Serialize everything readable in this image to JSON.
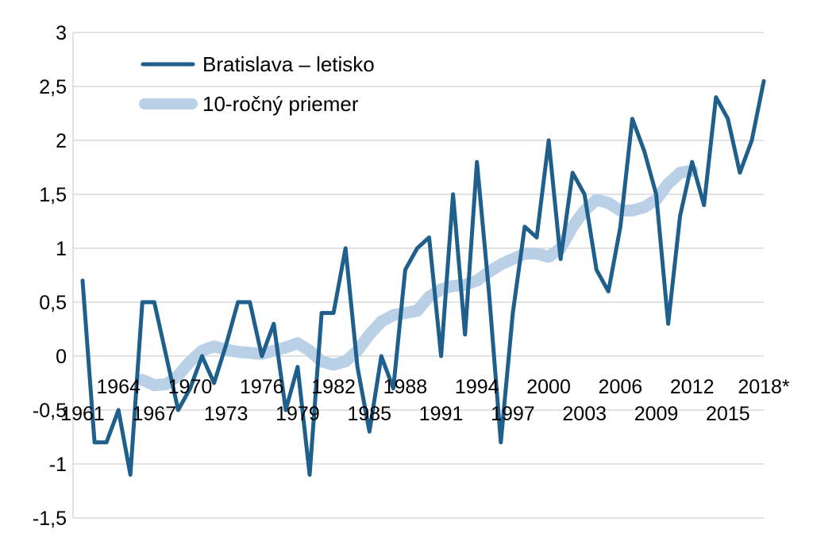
{
  "chart_data": {
    "type": "line",
    "title": "",
    "xlabel": "",
    "ylabel": "",
    "ylim": [
      -1.5,
      3
    ],
    "yticks": [
      -1.5,
      -1,
      -0.5,
      0,
      0.5,
      1,
      1.5,
      2,
      2.5,
      3
    ],
    "ytick_labels": [
      "-1,5",
      "-1",
      "-0,5",
      "0",
      "0,5",
      "1",
      "1,5",
      "2",
      "2,5",
      "3"
    ],
    "x_categories": [
      "1961",
      "1962",
      "1963",
      "1964",
      "1965",
      "1966",
      "1967",
      "1968",
      "1969",
      "1970",
      "1971",
      "1972",
      "1973",
      "1974",
      "1975",
      "1976",
      "1977",
      "1978",
      "1979",
      "1980",
      "1981",
      "1982",
      "1983",
      "1984",
      "1985",
      "1986",
      "1987",
      "1988",
      "1989",
      "1990",
      "1991",
      "1992",
      "1993",
      "1994",
      "1995",
      "1996",
      "1997",
      "1998",
      "1999",
      "2000",
      "2001",
      "2002",
      "2003",
      "2004",
      "2005",
      "2006",
      "2007",
      "2008",
      "2009",
      "2010",
      "2011",
      "2012",
      "2013",
      "2014",
      "2015",
      "2016",
      "2017",
      "2018*"
    ],
    "xtick_labels_upper": [
      "1964",
      "1970",
      "1976",
      "1982",
      "1988",
      "1994",
      "2000",
      "2006",
      "2012",
      "2018*"
    ],
    "xtick_labels_lower": [
      "1961",
      "1967",
      "1973",
      "1979",
      "1985",
      "1991",
      "1997",
      "2003",
      "2009",
      "2015"
    ],
    "grid": "horizontal",
    "legend_position": "top-left",
    "series": [
      {
        "name": "Bratislava – letisko",
        "color": "#1f5f8b",
        "values": [
          0.7,
          -0.8,
          -0.8,
          -0.5,
          -1.1,
          0.5,
          0.5,
          0.0,
          -0.5,
          -0.3,
          0.0,
          -0.25,
          0.1,
          0.5,
          0.5,
          0.0,
          0.3,
          -0.5,
          -0.1,
          -1.1,
          0.4,
          0.4,
          1.0,
          -0.1,
          -0.7,
          0.0,
          -0.3,
          0.8,
          1.0,
          1.1,
          0.0,
          1.5,
          0.2,
          1.8,
          0.6,
          -0.8,
          0.4,
          1.2,
          1.1,
          2.0,
          0.9,
          1.7,
          1.5,
          0.8,
          0.6,
          1.2,
          2.2,
          1.9,
          1.5,
          0.3,
          1.3,
          1.8,
          1.4,
          2.4,
          2.2,
          1.7,
          2.0,
          2.55
        ]
      },
      {
        "name": "10-ročný priemer",
        "color": "#b9d0e6",
        "values": [
          null,
          null,
          null,
          null,
          null,
          -0.22,
          -0.27,
          -0.26,
          -0.18,
          -0.05,
          0.05,
          0.09,
          0.06,
          0.04,
          0.03,
          0.02,
          0.05,
          0.08,
          0.12,
          0.05,
          -0.05,
          -0.08,
          -0.05,
          0.05,
          0.2,
          0.32,
          0.38,
          0.4,
          0.42,
          0.55,
          0.62,
          0.65,
          0.66,
          0.7,
          0.78,
          0.85,
          0.9,
          0.95,
          0.95,
          0.92,
          1.0,
          1.2,
          1.35,
          1.45,
          1.42,
          1.35,
          1.35,
          1.38,
          1.45,
          1.6,
          1.7,
          1.72,
          null,
          null,
          null,
          null,
          null,
          null
        ]
      }
    ]
  }
}
